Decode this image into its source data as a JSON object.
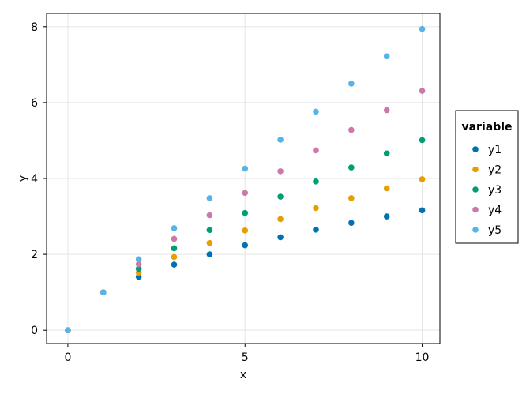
{
  "chart_data": {
    "type": "scatter",
    "title": "",
    "xlabel": "x",
    "ylabel": "y",
    "xlim": [
      -0.6,
      10.5
    ],
    "ylim": [
      -0.35,
      8.35
    ],
    "xticks": [
      0,
      5,
      10
    ],
    "yticks": [
      0,
      2,
      4,
      6,
      8
    ],
    "grid": true,
    "legend": {
      "title": "variable",
      "placement": "right"
    },
    "series": [
      {
        "name": "y1",
        "color": "#0072b2",
        "points": [
          [
            0,
            0
          ],
          [
            1,
            1
          ],
          [
            2,
            1.41
          ],
          [
            3,
            1.73
          ],
          [
            4,
            2.0
          ],
          [
            5,
            2.24
          ],
          [
            6,
            2.45
          ],
          [
            7,
            2.65
          ],
          [
            8,
            2.83
          ],
          [
            9,
            3.0
          ],
          [
            10,
            3.16
          ]
        ]
      },
      {
        "name": "y2",
        "color": "#e69f00",
        "points": [
          [
            0,
            0
          ],
          [
            1,
            1
          ],
          [
            2,
            1.52
          ],
          [
            3,
            1.93
          ],
          [
            4,
            2.3
          ],
          [
            5,
            2.63
          ],
          [
            6,
            2.93
          ],
          [
            7,
            3.22
          ],
          [
            8,
            3.48
          ],
          [
            9,
            3.74
          ],
          [
            10,
            3.98
          ]
        ]
      },
      {
        "name": "y3",
        "color": "#009e73",
        "points": [
          [
            0,
            0
          ],
          [
            1,
            1
          ],
          [
            2,
            1.62
          ],
          [
            3,
            2.16
          ],
          [
            4,
            2.64
          ],
          [
            5,
            3.09
          ],
          [
            6,
            3.52
          ],
          [
            7,
            3.92
          ],
          [
            8,
            4.29
          ],
          [
            9,
            4.66
          ],
          [
            10,
            5.01
          ]
        ]
      },
      {
        "name": "y4",
        "color": "#cc79a7",
        "points": [
          [
            0,
            0
          ],
          [
            1,
            1
          ],
          [
            2,
            1.74
          ],
          [
            3,
            2.41
          ],
          [
            4,
            3.03
          ],
          [
            5,
            3.62
          ],
          [
            6,
            4.19
          ],
          [
            7,
            4.74
          ],
          [
            8,
            5.28
          ],
          [
            9,
            5.8
          ],
          [
            10,
            6.31
          ]
        ]
      },
      {
        "name": "y5",
        "color": "#56b4e9",
        "points": [
          [
            0,
            0
          ],
          [
            1,
            1
          ],
          [
            2,
            1.87
          ],
          [
            3,
            2.69
          ],
          [
            4,
            3.48
          ],
          [
            5,
            4.26
          ],
          [
            6,
            5.02
          ],
          [
            7,
            5.76
          ],
          [
            8,
            6.5
          ],
          [
            9,
            7.22
          ],
          [
            10,
            7.94
          ]
        ]
      }
    ]
  }
}
